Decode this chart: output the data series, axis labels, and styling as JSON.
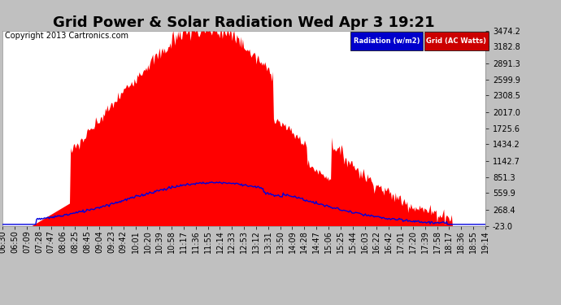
{
  "title": "Grid Power & Solar Radiation Wed Apr 3 19:21",
  "copyright": "Copyright 2013 Cartronics.com",
  "background_color": "#c0c0c0",
  "plot_bg_color": "#ffffff",
  "ylim_min": -23.0,
  "ylim_max": 3474.2,
  "yticks": [
    -23.0,
    268.4,
    559.9,
    851.3,
    1142.7,
    1434.2,
    1725.6,
    2017.0,
    2308.5,
    2599.9,
    2891.3,
    3182.8,
    3474.2
  ],
  "legend_rad_color": "#0000cc",
  "legend_grid_color": "#cc0000",
  "radiation_line_color": "#0000dd",
  "grid_fill_color": "#ff0000",
  "x_labels": [
    "06:30",
    "06:50",
    "07:09",
    "07:28",
    "07:47",
    "08:06",
    "08:25",
    "08:45",
    "09:04",
    "09:23",
    "09:42",
    "10:01",
    "10:20",
    "10:39",
    "10:58",
    "11:17",
    "11:36",
    "11:55",
    "12:14",
    "12:33",
    "12:53",
    "13:12",
    "13:31",
    "13:50",
    "14:09",
    "14:28",
    "14:47",
    "15:06",
    "15:25",
    "15:44",
    "16:03",
    "16:22",
    "16:42",
    "17:01",
    "17:20",
    "17:39",
    "17:58",
    "18:17",
    "18:36",
    "18:55",
    "19:14"
  ],
  "title_fontsize": 13,
  "tick_fontsize": 7,
  "copyright_fontsize": 7
}
